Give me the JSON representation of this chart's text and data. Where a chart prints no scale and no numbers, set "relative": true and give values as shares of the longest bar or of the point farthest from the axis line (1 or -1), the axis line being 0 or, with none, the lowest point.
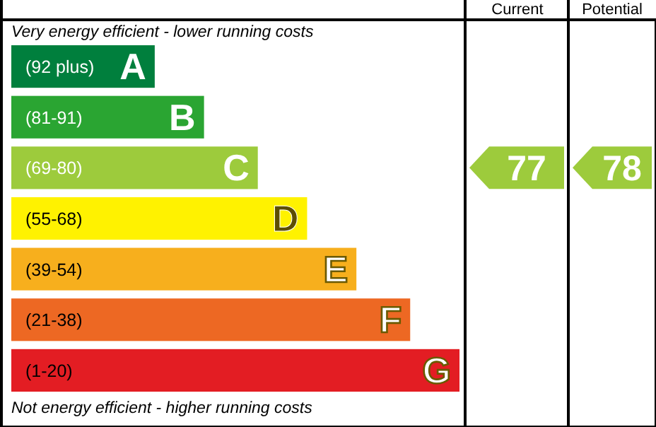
{
  "chart_data": {
    "type": "bar",
    "orientation": "horizontal",
    "relative": true,
    "categories": [
      "(92 plus)",
      "(81-91)",
      "(69-80)",
      "(55-68)",
      "(39-54)",
      "(21-38)",
      "(1-20)"
    ],
    "values": [
      0.32,
      0.43,
      0.55,
      0.66,
      0.77,
      0.89,
      1
    ],
    "colors": [
      "#007f3d",
      "#2aa532",
      "#9dcb3c",
      "#fff200",
      "#f7af1d",
      "#ed6823",
      "#e31d23"
    ],
    "annotations": [
      "Current",
      "Potential",
      "Very energy efficient - lower running costs",
      "Not energy efficient - higher running costs",
      "77",
      "78",
      "A",
      "B",
      "C",
      "D",
      "E",
      "F",
      "G"
    ]
  }
}
